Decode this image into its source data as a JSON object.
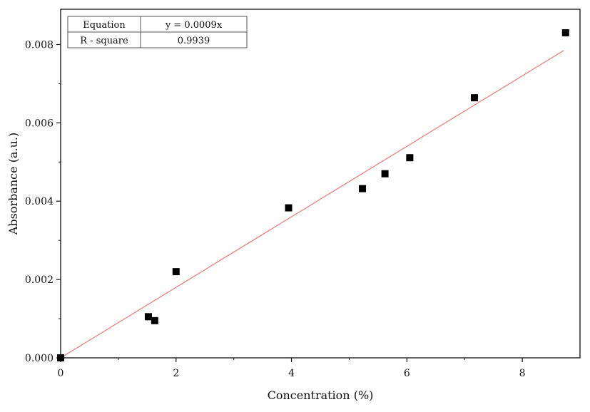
{
  "chart_data": {
    "type": "scatter",
    "title": "",
    "xlabel": "Concentration (%)",
    "ylabel": "Absorbance (a.u.)",
    "xlim": [
      0,
      9.0
    ],
    "ylim": [
      0,
      0.0089
    ],
    "x_ticks": [
      0,
      2,
      4,
      6,
      8
    ],
    "x_tick_labels": [
      "0",
      "2",
      "4",
      "6",
      "8"
    ],
    "y_ticks": [
      0,
      0.002,
      0.004,
      0.006,
      0.008
    ],
    "y_tick_labels": [
      "0.000",
      "0.002",
      "0.004",
      "0.006",
      "0.008"
    ],
    "grid": false,
    "series": [
      {
        "marker": "square",
        "color": "#000000",
        "x": [
          0,
          1.52,
          1.63,
          2.0,
          3.95,
          5.23,
          5.62,
          6.05,
          7.17,
          8.75
        ],
        "y": [
          0.0,
          0.00105,
          0.00095,
          0.0022,
          0.00383,
          0.00432,
          0.0047,
          0.00511,
          0.00664,
          0.0083
        ]
      }
    ],
    "fit_line": {
      "color": "#f08080",
      "slope": 0.0009,
      "x_range": [
        0,
        8.72
      ]
    },
    "table": {
      "position": "top-left",
      "rows": [
        [
          "Equation",
          "y = 0.0009x"
        ],
        [
          "R - square",
          "0.9939"
        ]
      ]
    }
  }
}
